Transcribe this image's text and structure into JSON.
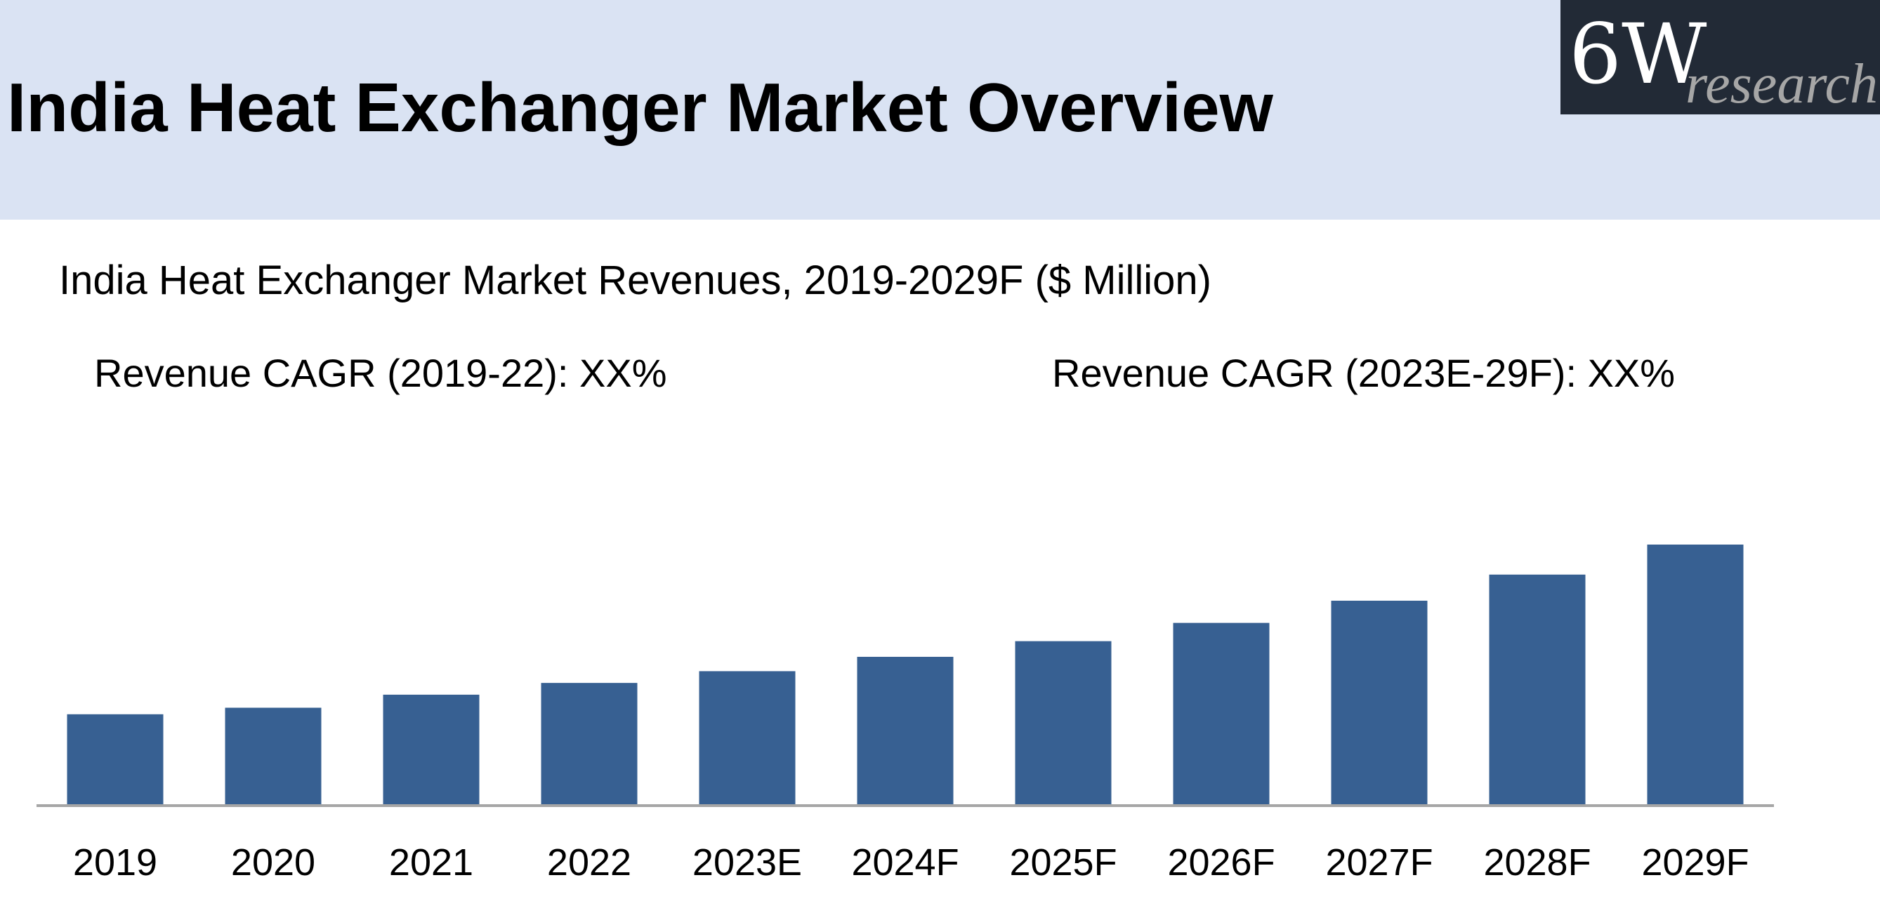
{
  "header": {
    "title": "India Heat Exchanger Market Overview",
    "logo": {
      "main": "6W",
      "sub": "research"
    }
  },
  "subtitle_cagr": {
    "historic": "Revenue CAGR (2019-22): XX%",
    "forecast": "Revenue CAGR (2023E-29F): XX%"
  },
  "colors": {
    "bar": "#376092",
    "banner": "#dae3f3",
    "axis": "#a6a6a6"
  },
  "chart_data": {
    "type": "bar",
    "title": "India Heat Exchanger Market Revenues, 2019-2029F ($ Million)",
    "xlabel": "",
    "ylabel": "",
    "grid": false,
    "legend": "none",
    "categories": [
      "2019",
      "2020",
      "2021",
      "2022",
      "2023E",
      "2024F",
      "2025F",
      "2026F",
      "2027F",
      "2028F",
      "2029F"
    ],
    "values": [
      35,
      37.5,
      42.5,
      47,
      51.5,
      57,
      63,
      70,
      78.5,
      88.5,
      100
    ],
    "ylim": [
      0,
      100
    ],
    "value_note": "Relative bar heights (tallest bar = 100); chart shows no axis values or data labels"
  }
}
